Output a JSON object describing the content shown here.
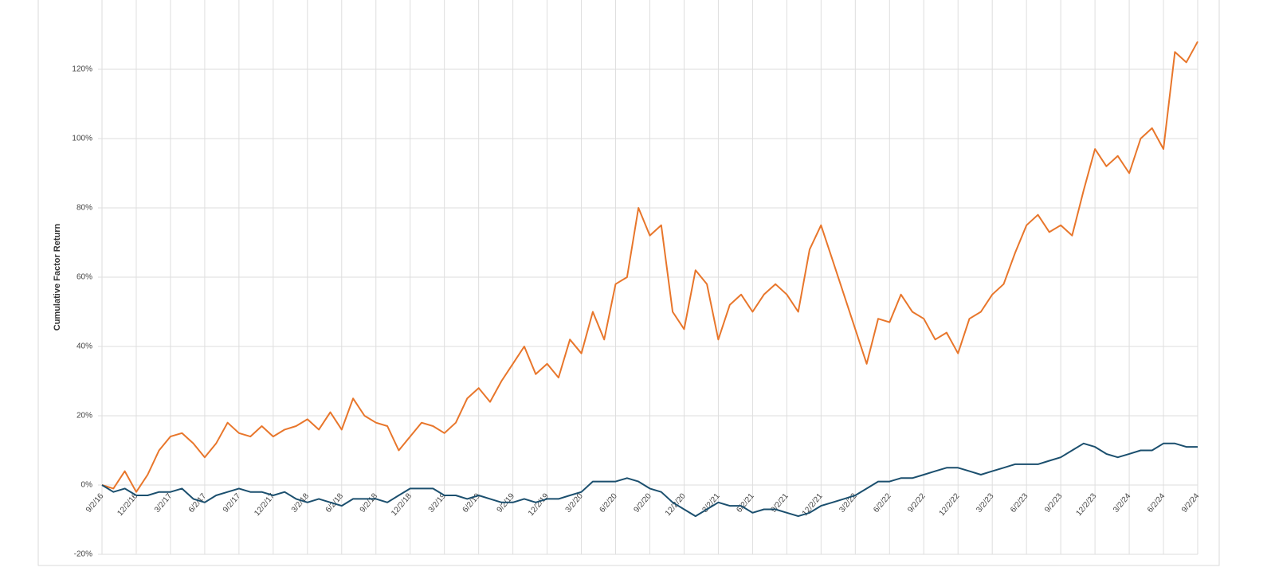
{
  "chart_data": {
    "type": "line",
    "y_label": "Cumulative Factor Return",
    "categories": [
      "9/2/16",
      null,
      null,
      "12/2/16",
      null,
      null,
      "3/2/17",
      null,
      null,
      "6/2/17",
      null,
      null,
      "9/2/17",
      null,
      null,
      "12/2/17",
      null,
      null,
      "3/2/18",
      null,
      null,
      "6/2/18",
      null,
      null,
      "9/2/18",
      null,
      null,
      "12/2/18",
      null,
      null,
      "3/2/19",
      null,
      null,
      "6/2/19",
      null,
      null,
      "9/2/19",
      null,
      null,
      "12/2/19",
      null,
      null,
      "3/2/20",
      null,
      null,
      "6/2/20",
      null,
      null,
      "9/2/20",
      null,
      null,
      "12/2/20",
      null,
      null,
      "3/2/21",
      null,
      null,
      "6/2/21",
      null,
      null,
      "9/2/21",
      null,
      null,
      "12/2/21",
      null,
      null,
      "3/2/22",
      null,
      null,
      "6/2/22",
      null,
      null,
      "9/2/22",
      null,
      null,
      "12/2/22",
      null,
      null,
      "3/2/23",
      null,
      null,
      "6/2/23",
      null,
      null,
      "9/2/23",
      null,
      null,
      "12/2/23",
      null,
      null,
      "3/2/24",
      null,
      null,
      "6/2/24",
      null,
      null,
      "9/2/24"
    ],
    "series": [
      {
        "color": "#e8762b",
        "values": [
          0,
          -1,
          4,
          -2,
          3,
          10,
          14,
          15,
          12,
          8,
          12,
          18,
          15,
          14,
          17,
          14,
          16,
          17,
          19,
          16,
          21,
          16,
          25,
          20,
          18,
          17,
          10,
          14,
          18,
          17,
          15,
          18,
          25,
          28,
          24,
          30,
          35,
          40,
          32,
          35,
          31,
          42,
          38,
          50,
          42,
          58,
          60,
          80,
          72,
          75,
          50,
          45,
          62,
          58,
          42,
          52,
          55,
          50,
          55,
          58,
          55,
          50,
          68,
          75,
          65,
          55,
          45,
          35,
          48,
          47,
          55,
          50,
          48,
          42,
          44,
          38,
          48,
          50,
          55,
          58,
          67,
          75,
          78,
          73,
          75,
          72,
          85,
          97,
          92,
          95,
          90,
          100,
          103,
          97,
          125,
          122,
          128
        ]
      },
      {
        "color": "#1b4f6e",
        "values": [
          0,
          -2,
          -1,
          -3,
          -3,
          -2,
          -2,
          -1,
          -4,
          -5,
          -3,
          -2,
          -1,
          -2,
          -2,
          -3,
          -2,
          -4,
          -5,
          -4,
          -5,
          -6,
          -4,
          -4,
          -4,
          -5,
          -3,
          -1,
          -1,
          -1,
          -3,
          -3,
          -4,
          -3,
          -4,
          -5,
          -5,
          -4,
          -5,
          -4,
          -4,
          -3,
          -2,
          1,
          1,
          1,
          2,
          1,
          -1,
          -2,
          -5,
          -7,
          -9,
          -7,
          -5,
          -6,
          -6,
          -8,
          -7,
          -7,
          -8,
          -9,
          -8,
          -6,
          -5,
          -4,
          -3,
          -1,
          1,
          1,
          2,
          2,
          3,
          4,
          5,
          5,
          4,
          3,
          4,
          5,
          6,
          6,
          6,
          7,
          8,
          10,
          12,
          11,
          9,
          8,
          9,
          10,
          10,
          12,
          12,
          11,
          11
        ]
      }
    ],
    "ylim": [
      -20,
      140
    ],
    "yticks": [
      {
        "value": -20,
        "label": "-20%"
      },
      {
        "value": 0,
        "label": "0%"
      },
      {
        "value": 20,
        "label": "20%"
      },
      {
        "value": 40,
        "label": "40%"
      },
      {
        "value": 60,
        "label": "60%"
      },
      {
        "value": 80,
        "label": "80%"
      },
      {
        "value": 100,
        "label": "100%"
      },
      {
        "value": 120,
        "label": "120%"
      }
    ],
    "grid": true
  }
}
